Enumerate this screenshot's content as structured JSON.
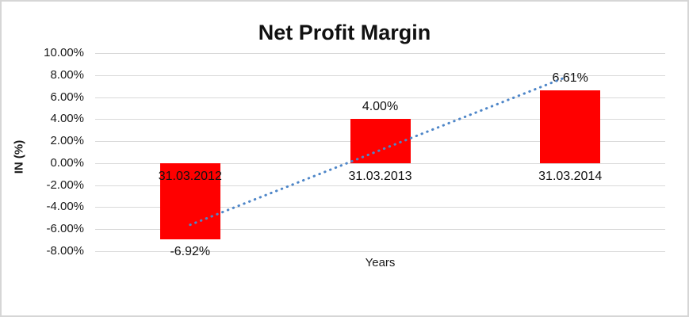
{
  "page": {
    "background": "#FFFFFF",
    "border_color": "#D6D6D6"
  },
  "chart_data": {
    "type": "bar",
    "title": "Net Profit Margin",
    "xlabel": "Years",
    "ylabel": "IN (%)",
    "categories": [
      "31.03.2012",
      "31.03.2013",
      "31.03.2014"
    ],
    "values": [
      -6.92,
      4.0,
      6.61
    ],
    "data_labels": [
      "-6.92%",
      "4.00%",
      "6.61%"
    ],
    "y_ticks": [
      {
        "value": 10,
        "label": "10.00%"
      },
      {
        "value": 8,
        "label": "8.00%"
      },
      {
        "value": 6,
        "label": "6.00%"
      },
      {
        "value": 4,
        "label": "4.00%"
      },
      {
        "value": 2,
        "label": "2.00%"
      },
      {
        "value": 0,
        "label": "0.00%"
      },
      {
        "value": -2,
        "label": "-2.00%"
      },
      {
        "value": -4,
        "label": "-4.00%"
      },
      {
        "value": -6,
        "label": "-6.00%"
      },
      {
        "value": -8,
        "label": "-8.00%"
      }
    ],
    "ylim": [
      -8,
      10
    ],
    "grid": true,
    "gridline_color": "#D9D9D9",
    "bar_color": "#FF0000",
    "legend": "none",
    "trendline": {
      "type": "linear",
      "style": "dotted",
      "color": "#4E86C8",
      "start_value": -5.6,
      "end_value": 7.8
    }
  }
}
